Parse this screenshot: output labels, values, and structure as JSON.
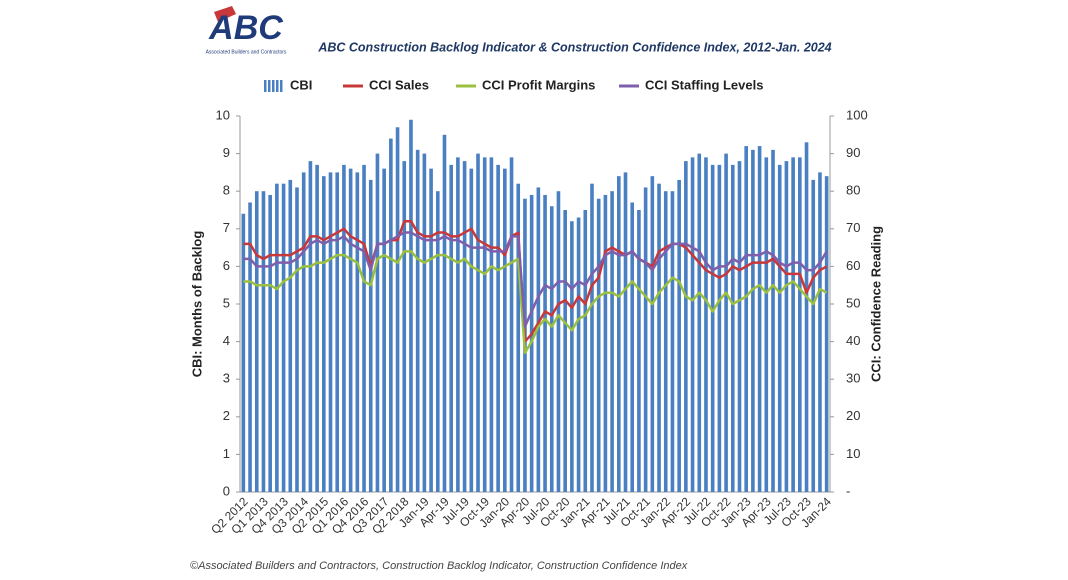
{
  "logo": {
    "text": "ABC",
    "subtext": "Associated Builders and Contractors"
  },
  "chart_data": {
    "type": "bar",
    "title": "ABC Construction Backlog Indicator & Construction Confidence Index, 2012-Jan. 2024",
    "ylabel": "CBI: Months of Backlog",
    "y2label": "CCI: Confidence Reading",
    "categories": [
      "Q2 2012",
      null,
      null,
      "Q1 2013",
      null,
      null,
      "Q4 2013",
      null,
      null,
      "Q3 2014",
      null,
      null,
      "Q2 2015",
      null,
      null,
      "Q1 2016",
      null,
      null,
      "Q4 2016",
      null,
      null,
      "Q3 2017",
      null,
      null,
      "Q2 2018",
      null,
      null,
      "Jan-19",
      null,
      null,
      "Apr-19",
      null,
      null,
      "Jul-19",
      null,
      null,
      "Oct-19",
      null,
      null,
      "Jan-20",
      null,
      null,
      "Apr-20",
      null,
      null,
      "Jul-20",
      null,
      null,
      "Oct-20",
      null,
      null,
      "Jan-21",
      null,
      null,
      "Apr-21",
      null,
      null,
      "Jul-21",
      null,
      null,
      "Oct-21",
      null,
      null,
      "Jan-22",
      null,
      null,
      "Apr-22",
      null,
      null,
      "Jul-22",
      null,
      null,
      "Oct-22",
      null,
      null,
      "Jan-23",
      null,
      null,
      "Apr-23",
      null,
      null,
      "Jul-23",
      null,
      null,
      "Oct-23",
      null,
      null,
      "Jan-24"
    ],
    "series": [
      {
        "name": "CBI",
        "type": "bar",
        "color": "#4a7fc1",
        "values": [
          7.4,
          7.7,
          8.0,
          8.0,
          7.9,
          8.2,
          8.2,
          8.3,
          8.1,
          8.5,
          8.8,
          8.7,
          8.4,
          8.5,
          8.5,
          8.7,
          8.6,
          8.5,
          8.7,
          8.3,
          9.0,
          8.6,
          9.4,
          9.7,
          8.8,
          9.9,
          9.1,
          9.0,
          8.6,
          8.0,
          9.5,
          8.7,
          8.9,
          8.8,
          8.6,
          9.0,
          8.9,
          8.9,
          8.7,
          8.6,
          8.9,
          8.2,
          7.8,
          7.9,
          8.1,
          7.9,
          7.6,
          8.0,
          7.5,
          7.2,
          7.3,
          7.5,
          8.2,
          7.8,
          7.9,
          8.0,
          8.4,
          8.5,
          7.7,
          7.5,
          8.1,
          8.4,
          8.2,
          8.0,
          8.0,
          8.3,
          8.8,
          8.9,
          9.0,
          8.9,
          8.7,
          8.7,
          9.0,
          8.7,
          8.8,
          9.2,
          9.1,
          9.2,
          8.9,
          9.1,
          8.7,
          8.8,
          8.9,
          8.9,
          9.3,
          8.3,
          8.5,
          8.4
        ]
      },
      {
        "name": "CCI Sales",
        "type": "line",
        "axis": "y2",
        "color": "#c8373a",
        "values": [
          66,
          66,
          63,
          62,
          63,
          63,
          63,
          63,
          64,
          65,
          68,
          68,
          67,
          68,
          69,
          70,
          68,
          67,
          66,
          60,
          66,
          66,
          67,
          67,
          72,
          72,
          69,
          68,
          68,
          69,
          69,
          68,
          68,
          69,
          70,
          67,
          66,
          65,
          65,
          63,
          68,
          69,
          40,
          42,
          45,
          48,
          47,
          50,
          51,
          49,
          52,
          50,
          55,
          57,
          64,
          65,
          64,
          63,
          64,
          62,
          61,
          60,
          64,
          65,
          66,
          66,
          65,
          63,
          61,
          59,
          58,
          57,
          58,
          60,
          59,
          60,
          61,
          61,
          61,
          62,
          60,
          58,
          58,
          58,
          53,
          57,
          59,
          60
        ]
      },
      {
        "name": "CCI Profit Margins",
        "type": "line",
        "axis": "y2",
        "color": "#9bc03f",
        "values": [
          56,
          56,
          55,
          55,
          55,
          54,
          56,
          57,
          59,
          60,
          60,
          61,
          61,
          62,
          63,
          63,
          62,
          61,
          56,
          55,
          62,
          63,
          62,
          61,
          64,
          64,
          62,
          61,
          62,
          63,
          63,
          62,
          61,
          62,
          60,
          59,
          58,
          60,
          59,
          60,
          61,
          62,
          37,
          40,
          44,
          46,
          44,
          47,
          45,
          43,
          46,
          47,
          50,
          52,
          53,
          53,
          52,
          54,
          56,
          54,
          52,
          50,
          53,
          55,
          57,
          56,
          52,
          51,
          53,
          51,
          48,
          51,
          53,
          50,
          51,
          52,
          54,
          55,
          53,
          55,
          53,
          55,
          56,
          54,
          52,
          50,
          54,
          53
        ]
      },
      {
        "name": "CCI Staffing Levels",
        "type": "line",
        "axis": "y2",
        "color": "#7f5fab",
        "values": [
          62,
          62,
          60,
          60,
          60,
          61,
          61,
          61,
          62,
          64,
          66,
          67,
          66,
          67,
          67,
          68,
          66,
          65,
          64,
          59,
          66,
          66,
          67,
          68,
          69,
          69,
          68,
          67,
          67,
          67,
          68,
          67,
          67,
          66,
          65,
          65,
          65,
          64,
          64,
          64,
          68,
          68,
          44,
          48,
          52,
          55,
          54,
          56,
          56,
          54,
          56,
          55,
          58,
          60,
          63,
          64,
          63,
          63,
          64,
          62,
          61,
          59,
          62,
          64,
          66,
          66,
          66,
          65,
          64,
          61,
          59,
          60,
          60,
          62,
          61,
          63,
          63,
          63,
          64,
          63,
          61,
          60,
          61,
          61,
          59,
          59,
          61,
          64
        ]
      }
    ],
    "ylim": [
      0,
      10
    ],
    "yticks": [
      0,
      1,
      2,
      3,
      4,
      5,
      6,
      7,
      8,
      9,
      10
    ],
    "y2lim": [
      0,
      100
    ],
    "y2ticks": [
      {
        "value": 0,
        "label": "-"
      },
      10,
      20,
      30,
      40,
      50,
      60,
      70,
      80,
      90,
      100
    ],
    "source": "©Associated Builders and Contractors, Construction Backlog Indicator, Construction Confidence Index"
  }
}
